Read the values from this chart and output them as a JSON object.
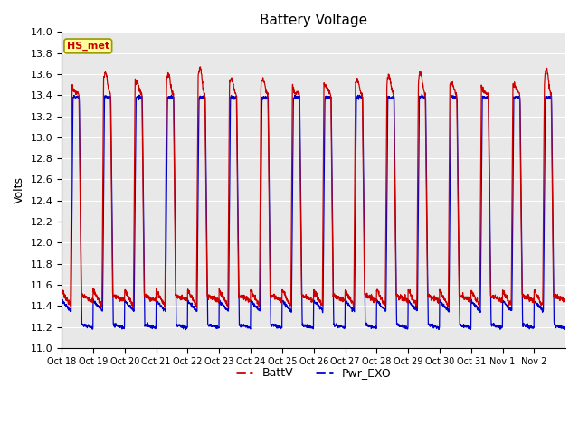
{
  "title": "Battery Voltage",
  "ylabel": "Volts",
  "ylim": [
    11.0,
    14.0
  ],
  "yticks": [
    11.0,
    11.2,
    11.4,
    11.6,
    11.8,
    12.0,
    12.2,
    12.4,
    12.6,
    12.8,
    13.0,
    13.2,
    13.4,
    13.6,
    13.8,
    14.0
  ],
  "xtick_labels": [
    "Oct 18",
    "Oct 19",
    "Oct 20",
    "Oct 21",
    "Oct 22",
    "Oct 23",
    "Oct 24",
    "Oct 25",
    "Oct 26",
    "Oct 27",
    "Oct 28",
    "Oct 29",
    "Oct 30",
    "Oct 31",
    "Nov 1",
    "Nov 2"
  ],
  "batt_color": "#cc0000",
  "exo_color": "#0000cc",
  "legend_labels": [
    "BattV",
    "Pwr_EXO"
  ],
  "hs_met_label": "HS_met",
  "hs_met_bg": "#ffff99",
  "hs_met_border": "#999900",
  "hs_met_text_color": "#cc0000",
  "background_color": "#ffffff",
  "plot_bg_color": "#e8e8e8",
  "grid_color": "#ffffff",
  "title_fontsize": 11,
  "axis_fontsize": 9,
  "tick_fontsize": 8,
  "legend_fontsize": 9,
  "num_days": 16,
  "points_per_day": 144
}
